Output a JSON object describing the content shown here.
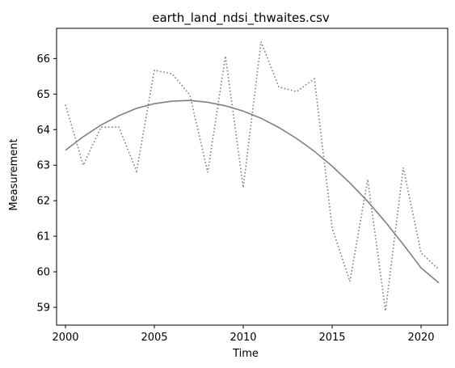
{
  "chart_data": {
    "type": "line",
    "title": "earth_land_ndsi_thwaites.csv",
    "xlabel": "Time",
    "ylabel": "Measurement",
    "xlim": [
      1999.5,
      2021.5
    ],
    "ylim": [
      58.5,
      66.85
    ],
    "xticks": [
      2000,
      2005,
      2010,
      2015,
      2020
    ],
    "yticks": [
      59,
      60,
      61,
      62,
      63,
      64,
      65,
      66
    ],
    "grid": false,
    "legend": "none",
    "series": [
      {
        "style": "dotted",
        "color": "#808080",
        "x": [
          2000,
          2001,
          2002,
          2003,
          2004,
          2005,
          2006,
          2007,
          2008,
          2009,
          2010,
          2011,
          2012,
          2013,
          2014,
          2015,
          2016,
          2017,
          2018,
          2019,
          2020,
          2021
        ],
        "values": [
          64.7,
          63.0,
          64.07,
          64.07,
          62.83,
          65.67,
          65.57,
          64.97,
          62.8,
          66.07,
          62.37,
          66.47,
          65.2,
          65.07,
          65.43,
          61.23,
          59.73,
          62.6,
          58.9,
          62.93,
          60.53,
          60.07
        ]
      },
      {
        "style": "solid",
        "color": "#808080",
        "x": [
          2000,
          2001,
          2002,
          2003,
          2004,
          2005,
          2006,
          2007,
          2008,
          2009,
          2010,
          2011,
          2012,
          2013,
          2014,
          2015,
          2016,
          2017,
          2018,
          2019,
          2020,
          2021
        ],
        "values": [
          63.42,
          63.8,
          64.13,
          64.39,
          64.6,
          64.73,
          64.8,
          64.82,
          64.77,
          64.67,
          64.52,
          64.32,
          64.06,
          63.75,
          63.39,
          62.97,
          62.5,
          61.98,
          61.4,
          60.77,
          60.11,
          59.69
        ]
      }
    ]
  }
}
